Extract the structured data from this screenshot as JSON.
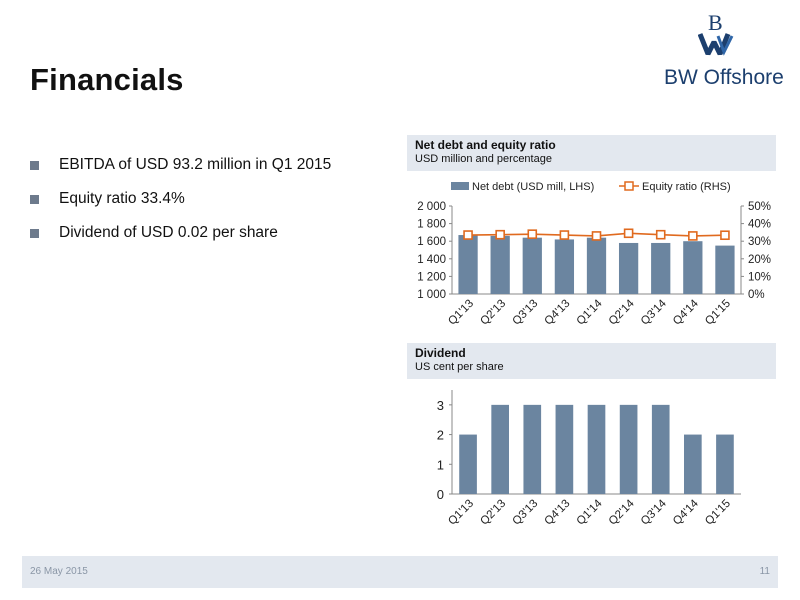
{
  "title": "Financials",
  "logo": {
    "text": "BW Offshore",
    "icon": "bw-monogram-icon",
    "color": "#1c3f6e"
  },
  "bullets": [
    "EBITDA of USD 93.2 million in Q1 2015",
    "Equity ratio 33.4%",
    "Dividend of USD 0.02 per share"
  ],
  "panels": {
    "netdebt": {
      "title": "Net debt and equity ratio",
      "subtitle": "USD million and percentage"
    },
    "dividend": {
      "title": "Dividend",
      "subtitle": "US cent per share"
    }
  },
  "footer": {
    "date": "26 May 2015",
    "page": "11"
  },
  "colors": {
    "bar": "#6b85a0",
    "line": "#e06a1f",
    "panel": "#e3e8ef"
  },
  "chart_data": [
    {
      "type": "bar",
      "categories": [
        "Q1'13",
        "Q2'13",
        "Q3'13",
        "Q4'13",
        "Q1'14",
        "Q2'14",
        "Q3'14",
        "Q4'14",
        "Q1'15"
      ],
      "series": [
        {
          "name": "Net debt (USD mill, LHS)",
          "type": "bar",
          "axis": "left",
          "values": [
            1670,
            1660,
            1640,
            1620,
            1640,
            1580,
            1580,
            1600,
            1550
          ]
        },
        {
          "name": "Equity ratio (RHS)",
          "type": "line",
          "axis": "right",
          "values": [
            0.335,
            0.337,
            0.34,
            0.335,
            0.33,
            0.345,
            0.337,
            0.33,
            0.334
          ]
        }
      ],
      "y_left": {
        "min": 1000,
        "max": 2000,
        "ticks": [
          "1 000",
          "1 200",
          "1 400",
          "1 600",
          "1 800",
          "2 000"
        ]
      },
      "y_right": {
        "min": 0,
        "max": 0.5,
        "ticks": [
          "0%",
          "10%",
          "20%",
          "30%",
          "40%",
          "50%"
        ]
      },
      "legend": "top",
      "grid": false
    },
    {
      "type": "bar",
      "categories": [
        "Q1'13",
        "Q2'13",
        "Q3'13",
        "Q4'13",
        "Q1'14",
        "Q2'14",
        "Q3'14",
        "Q4'14",
        "Q1'15"
      ],
      "values": [
        2,
        3,
        3,
        3,
        3,
        3,
        3,
        2,
        2
      ],
      "ylim": [
        0,
        3.5
      ],
      "yticks": [
        "0",
        "1",
        "2",
        "3"
      ],
      "grid": false
    }
  ]
}
